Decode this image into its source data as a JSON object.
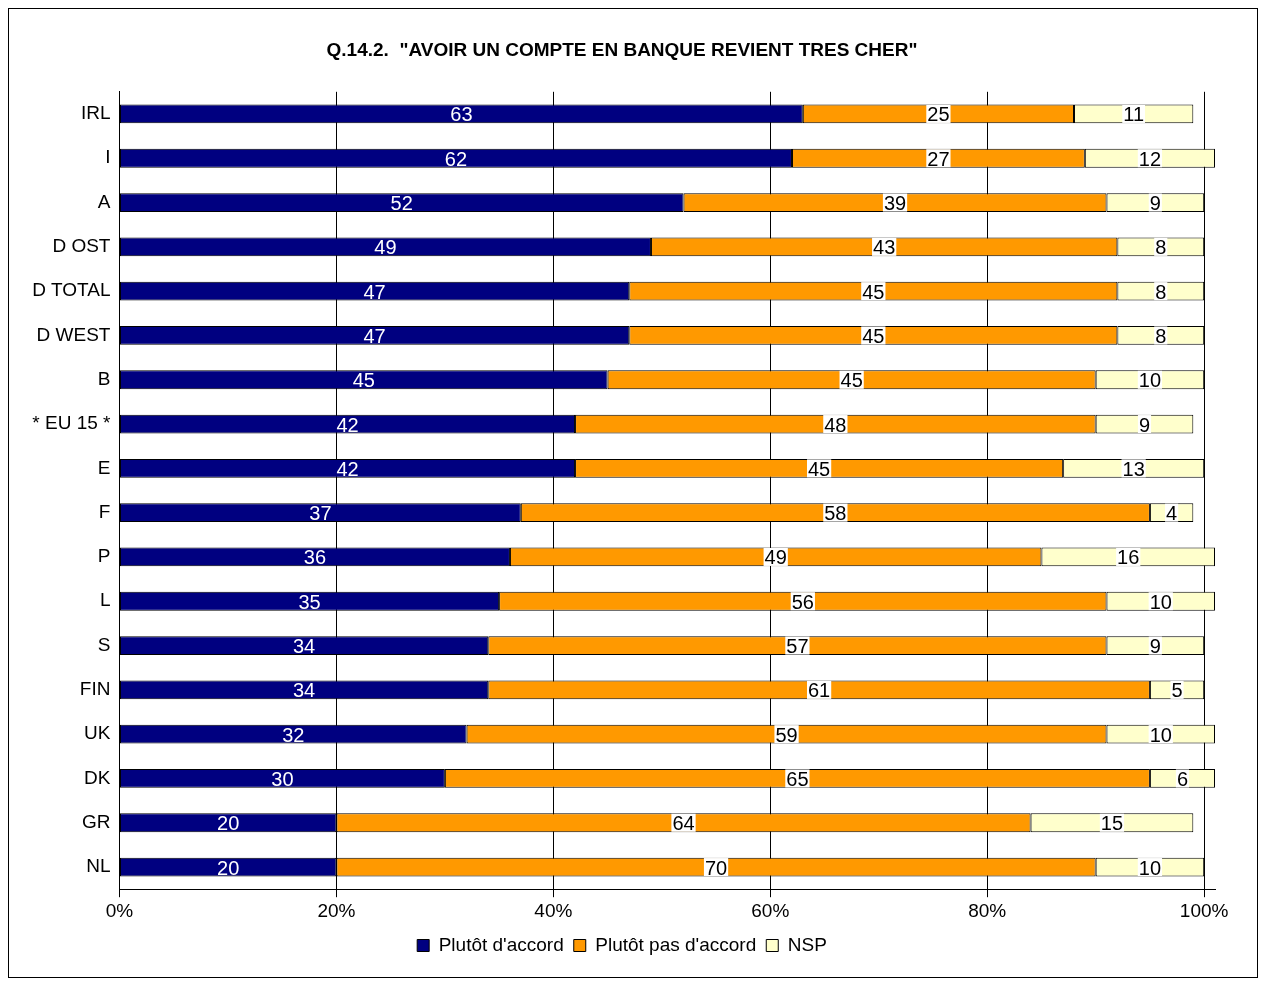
{
  "chart_data": {
    "type": "bar",
    "orientation": "horizontal",
    "stacked": true,
    "title": "Q.14.2.  \"AVOIR UN COMPTE EN BANQUE REVIENT TRES CHER\"",
    "categories": [
      "IRL",
      "I",
      "A",
      "D OST",
      "D TOTAL",
      "D WEST",
      "B",
      "* EU 15 *",
      "E",
      "F",
      "P",
      "L",
      "S",
      "FIN",
      "UK",
      "DK",
      "GR",
      "NL"
    ],
    "series": [
      {
        "name": "Plutôt d'accord",
        "color": "#000080",
        "values": [
          63,
          62,
          52,
          49,
          47,
          47,
          45,
          42,
          42,
          37,
          36,
          35,
          34,
          34,
          32,
          30,
          20,
          20
        ]
      },
      {
        "name": "Plutôt pas d'accord",
        "color": "#ff9900",
        "values": [
          25,
          27,
          39,
          43,
          45,
          45,
          45,
          48,
          45,
          58,
          49,
          56,
          57,
          61,
          59,
          65,
          64,
          70
        ]
      },
      {
        "name": "NSP",
        "color": "#ffffcc",
        "values": [
          11,
          12,
          9,
          8,
          8,
          8,
          10,
          9,
          13,
          4,
          16,
          10,
          9,
          5,
          10,
          6,
          15,
          10
        ]
      }
    ],
    "xlim": [
      0,
      101
    ],
    "xticks": [
      {
        "value": 0,
        "label": "0%"
      },
      {
        "value": 20,
        "label": "20%"
      },
      {
        "value": 40,
        "label": "40%"
      },
      {
        "value": 60,
        "label": "60%"
      },
      {
        "value": 80,
        "label": "80%"
      },
      {
        "value": 100,
        "label": "100%"
      }
    ],
    "grid": "x",
    "legend": "bottom",
    "data_labels": true
  }
}
